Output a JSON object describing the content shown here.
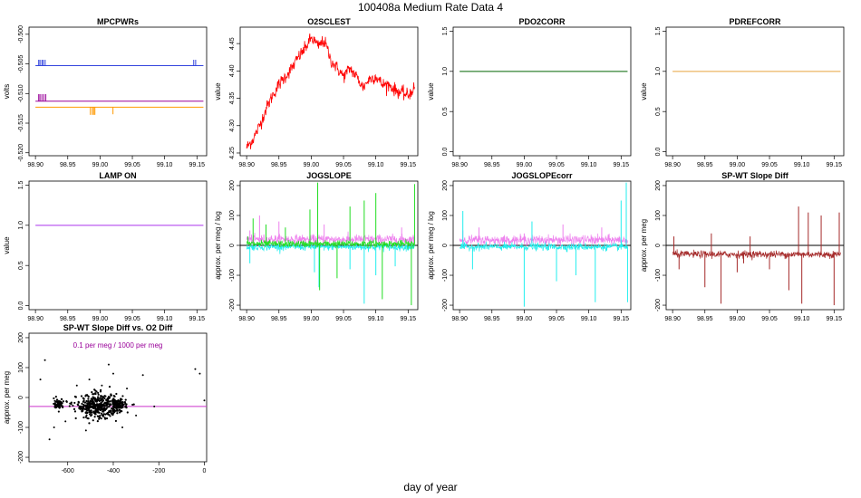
{
  "title": "100408a   Medium Rate Data 4",
  "x_axis_title": "day of year",
  "colors": {
    "blue": "#3344dd",
    "purple": "#990099",
    "orange": "#ff9900",
    "red": "#ff0000",
    "green_dark": "#006400",
    "tan": "#e6a23c",
    "violet": "#aa33ee",
    "pink": "#ee82ee",
    "cyan": "#22eeee",
    "lime": "#22dd22",
    "brown": "#a52a2a",
    "black": "#000000",
    "magenta_line": "#cc33cc",
    "annotation": "#990099"
  },
  "chart_data": [
    {
      "type": "line",
      "title": "MPCPWRs",
      "ylabel": "volts",
      "xlim": [
        98.89,
        99.165
      ],
      "ylim": [
        -0.5205,
        -0.4988
      ],
      "xticks": [
        "98.90",
        "98.95",
        "99.00",
        "99.05",
        "99.10",
        "99.15"
      ],
      "yticks": [
        "-0.500",
        "-0.505",
        "-0.510",
        "-0.515",
        "-0.520"
      ],
      "series": [
        {
          "name": "blue",
          "color": "blue",
          "x": [
            98.9,
            99.16
          ],
          "baseline": -0.5053,
          "spikes": [
            [
              98.905,
              -0.5043
            ],
            [
              98.907,
              -0.5043
            ],
            [
              98.91,
              -0.5043
            ],
            [
              98.912,
              -0.5043
            ],
            [
              98.915,
              -0.5043
            ],
            [
              99.145,
              -0.5043
            ],
            [
              99.148,
              -0.5043
            ]
          ]
        },
        {
          "name": "purple",
          "color": "purple",
          "x": [
            98.9,
            99.16
          ],
          "baseline": -0.5113,
          "spikes": [
            [
              98.905,
              -0.5101
            ],
            [
              98.907,
              -0.5101
            ],
            [
              98.91,
              -0.5101
            ],
            [
              98.913,
              -0.5101
            ],
            [
              98.916,
              -0.5101
            ]
          ]
        },
        {
          "name": "orange",
          "color": "orange",
          "x": [
            98.9,
            99.16
          ],
          "baseline": -0.5123,
          "spikes": [
            [
              98.985,
              -0.5136
            ],
            [
              98.988,
              -0.5136
            ],
            [
              98.99,
              -0.5136
            ],
            [
              98.992,
              -0.5136
            ],
            [
              99.02,
              -0.5135
            ]
          ]
        }
      ]
    },
    {
      "type": "line",
      "title": "O2SCLEST",
      "ylabel": "value",
      "xlim": [
        98.89,
        99.165
      ],
      "ylim": [
        4.245,
        4.48
      ],
      "xticks": [
        "98.90",
        "98.95",
        "99.00",
        "99.05",
        "99.10",
        "99.15"
      ],
      "yticks": [
        "4.25",
        "4.30",
        "4.35",
        "4.40",
        "4.45"
      ],
      "series": [
        {
          "name": "O2SCLEST",
          "color": "red",
          "noise": 0.006,
          "x": [
            98.9,
            98.91,
            98.92,
            98.93,
            98.94,
            98.95,
            98.96,
            98.97,
            98.98,
            98.99,
            99.0,
            99.005,
            99.01,
            99.02,
            99.025,
            99.03,
            99.04,
            99.05,
            99.06,
            99.07,
            99.08,
            99.09,
            99.1,
            99.11,
            99.12,
            99.13,
            99.14,
            99.15,
            99.16
          ],
          "y": [
            4.26,
            4.275,
            4.3,
            4.33,
            4.355,
            4.375,
            4.39,
            4.405,
            4.425,
            4.44,
            4.46,
            4.455,
            4.445,
            4.455,
            4.44,
            4.42,
            4.405,
            4.39,
            4.405,
            4.39,
            4.37,
            4.385,
            4.39,
            4.375,
            4.375,
            4.365,
            4.36,
            4.355,
            4.37
          ]
        }
      ]
    },
    {
      "type": "line",
      "title": "PDO2CORR",
      "ylabel": "value",
      "xlim": [
        98.89,
        99.165
      ],
      "ylim": [
        -0.05,
        1.55
      ],
      "xticks": [
        "98.90",
        "98.95",
        "99.00",
        "99.05",
        "99.10",
        "99.15"
      ],
      "yticks": [
        "0.0",
        "0.5",
        "1.0",
        "1.5"
      ],
      "series": [
        {
          "name": "PDO2CORR",
          "color": "green_dark",
          "x": [
            98.9,
            99.16
          ],
          "y": [
            1.0,
            1.0
          ]
        }
      ]
    },
    {
      "type": "line",
      "title": "PDREFCORR",
      "ylabel": "value",
      "xlim": [
        98.89,
        99.165
      ],
      "ylim": [
        -0.05,
        1.55
      ],
      "xticks": [
        "98.90",
        "98.95",
        "99.00",
        "99.05",
        "99.10",
        "99.15"
      ],
      "yticks": [
        "0.0",
        "0.5",
        "1.0",
        "1.5"
      ],
      "series": [
        {
          "name": "PDREFCORR",
          "color": "tan",
          "x": [
            98.9,
            99.16
          ],
          "y": [
            1.0,
            1.0
          ]
        }
      ]
    },
    {
      "type": "line",
      "title": "LAMP ON",
      "ylabel": "value",
      "xlim": [
        98.89,
        99.165
      ],
      "ylim": [
        -0.05,
        1.55
      ],
      "xticks": [
        "98.90",
        "98.95",
        "99.00",
        "99.05",
        "99.10",
        "99.15"
      ],
      "yticks": [
        "0.0",
        "0.5",
        "1.0",
        "1.5"
      ],
      "series": [
        {
          "name": "LAMP ON",
          "color": "violet",
          "x": [
            98.9,
            99.16
          ],
          "y": [
            1.0,
            1.0
          ]
        }
      ]
    },
    {
      "type": "line",
      "title": "JOGSLOPE",
      "ylabel": "approx. per meg / log",
      "xlim": [
        98.89,
        99.165
      ],
      "ylim": [
        -215,
        215
      ],
      "xticks": [
        "98.90",
        "98.95",
        "99.00",
        "99.05",
        "99.10",
        "99.15"
      ],
      "yticks": [
        "-200",
        "-100",
        "0",
        "100",
        "200"
      ],
      "hline": 0,
      "series": [
        {
          "name": "pink",
          "color": "pink",
          "x": [
            98.9,
            99.16
          ],
          "baseline": 20,
          "noise": 8,
          "spikes": [
            [
              98.905,
              50
            ],
            [
              98.92,
              100
            ],
            [
              98.95,
              80
            ],
            [
              99.02,
              70
            ],
            [
              99.14,
              60
            ]
          ]
        },
        {
          "name": "cyan",
          "color": "cyan",
          "x": [
            98.9,
            99.16
          ],
          "baseline": -5,
          "noise": 6,
          "spikes": [
            [
              98.905,
              -60
            ],
            [
              99.005,
              -90
            ],
            [
              99.012,
              -140
            ],
            [
              99.06,
              -80
            ],
            [
              99.082,
              -195
            ],
            [
              99.1,
              -100
            ],
            [
              99.13,
              -70
            ]
          ]
        },
        {
          "name": "green",
          "color": "lime",
          "x": [
            98.9,
            99.16
          ],
          "baseline": 5,
          "noise": 6,
          "spikes": [
            [
              98.902,
              30
            ],
            [
              98.91,
              90
            ],
            [
              98.93,
              70
            ],
            [
              98.96,
              60
            ],
            [
              98.998,
              120
            ],
            [
              99.01,
              210
            ],
            [
              99.013,
              -150
            ],
            [
              99.04,
              -110
            ],
            [
              99.06,
              130
            ],
            [
              99.082,
              150
            ],
            [
              99.1,
              175
            ],
            [
              99.11,
              -180
            ],
            [
              99.155,
              -200
            ],
            [
              99.16,
              205
            ]
          ]
        }
      ]
    },
    {
      "type": "line",
      "title": "JOGSLOPEcorr",
      "ylabel": "approx. per meg / log",
      "xlim": [
        98.89,
        99.165
      ],
      "ylim": [
        -215,
        215
      ],
      "xticks": [
        "98.90",
        "98.95",
        "99.00",
        "99.05",
        "99.10",
        "99.15"
      ],
      "yticks": [
        "-200",
        "-100",
        "0",
        "100",
        "200"
      ],
      "hline": 0,
      "series": [
        {
          "name": "pink",
          "color": "pink",
          "x": [
            98.9,
            99.16
          ],
          "baseline": 18,
          "noise": 8,
          "spikes": [
            [
              98.905,
              50
            ],
            [
              98.93,
              60
            ],
            [
              99.0,
              40
            ],
            [
              99.06,
              70
            ],
            [
              99.12,
              60
            ]
          ]
        },
        {
          "name": "cyan",
          "color": "cyan",
          "x": [
            98.9,
            99.16
          ],
          "baseline": -5,
          "noise": 6,
          "spikes": [
            [
              98.905,
              115
            ],
            [
              98.92,
              -80
            ],
            [
              99.0,
              -205
            ],
            [
              99.012,
              80
            ],
            [
              99.05,
              -120
            ],
            [
              99.08,
              -100
            ],
            [
              99.11,
              -190
            ],
            [
              99.15,
              150
            ],
            [
              99.158,
              210
            ],
            [
              99.16,
              -190
            ]
          ]
        }
      ]
    },
    {
      "type": "line",
      "title": "SP-WT Slope Diff",
      "ylabel": "approx. per meg",
      "xlim": [
        98.89,
        99.165
      ],
      "ylim": [
        -215,
        215
      ],
      "xticks": [
        "98.90",
        "98.95",
        "99.00",
        "99.05",
        "99.10",
        "99.15"
      ],
      "yticks": [
        "-200",
        "-100",
        "0",
        "100",
        "200"
      ],
      "hline": 0,
      "series": [
        {
          "name": "diff",
          "color": "brown",
          "x": [
            98.9,
            99.16
          ],
          "baseline": -30,
          "noise": 6,
          "spikes": [
            [
              98.902,
              30
            ],
            [
              98.91,
              -80
            ],
            [
              98.95,
              -140
            ],
            [
              98.96,
              40
            ],
            [
              98.975,
              -195
            ],
            [
              99.0,
              -90
            ],
            [
              99.01,
              -60
            ],
            [
              99.02,
              30
            ],
            [
              99.05,
              -80
            ],
            [
              99.08,
              -150
            ],
            [
              99.095,
              130
            ],
            [
              99.1,
              -195
            ],
            [
              99.11,
              110
            ],
            [
              99.13,
              100
            ],
            [
              99.15,
              -200
            ],
            [
              99.158,
              110
            ]
          ]
        }
      ]
    },
    {
      "type": "scatter",
      "title": "SP-WT Slope Diff vs. O2 Diff",
      "ylabel": "approx. per meg",
      "xlim": [
        -770,
        10
      ],
      "ylim": [
        -215,
        215
      ],
      "xticks": [
        "-600",
        "-400",
        "-200",
        "0"
      ],
      "yticks": [
        "-200",
        "-100",
        "0",
        "100",
        "200"
      ],
      "hline": -30,
      "hline_color": "magenta_line",
      "annotation": "0.1 per meg / 1000 per meg",
      "clusters": [
        {
          "cx": -640,
          "cy": -20,
          "sx": 10,
          "sy": 8,
          "n": 70
        },
        {
          "cx": -470,
          "cy": -30,
          "sx": 45,
          "sy": 20,
          "n": 380
        },
        {
          "cx": -380,
          "cy": -25,
          "sx": 18,
          "sy": 12,
          "n": 120
        }
      ],
      "outliers": [
        [
          -720,
          60
        ],
        [
          -700,
          125
        ],
        [
          -610,
          -80
        ],
        [
          -590,
          -20
        ],
        [
          -560,
          40
        ],
        [
          -520,
          -110
        ],
        [
          -505,
          60
        ],
        [
          -450,
          40
        ],
        [
          -420,
          110
        ],
        [
          -400,
          80
        ],
        [
          -360,
          -100
        ],
        [
          -340,
          30
        ],
        [
          -270,
          75
        ],
        [
          -220,
          -30
        ],
        [
          -40,
          95
        ],
        [
          -20,
          80
        ],
        [
          0,
          -10
        ],
        [
          -680,
          -140
        ],
        [
          -660,
          -100
        ],
        [
          -300,
          -60
        ]
      ]
    }
  ]
}
